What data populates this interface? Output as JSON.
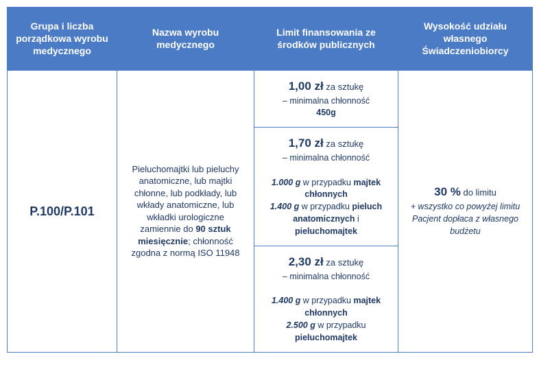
{
  "colors": {
    "header_bg": "#4a7bc4",
    "header_text": "#ffffff",
    "border": "#4a7bc4",
    "body_text": "#1f3864",
    "background": "#ffffff"
  },
  "headers": {
    "col1": "Grupa i liczba porządkowa wyrobu medycznego",
    "col2": "Nazwa wyrobu medycznego",
    "col3": "Limit finansowania ze środków publicznych",
    "col4": "Wysokość udziału własnego Świadczeniobiorcy"
  },
  "row": {
    "code": "P.100/P.101",
    "description_pre": "Pieluchomajtki lub pieluchy anatomiczne, lub majtki chłonne, lub podkłady, lub wkłady anatomiczne, lub wkładki urologiczne zamiennie do ",
    "description_bold": "90 sztuk miesięcznie",
    "description_post": "; chłonność zgodna z normą ISO 11948",
    "limits": [
      {
        "price": "1,00 zł",
        "per_unit": " za sztukę",
        "note": "– minimalna chłonność",
        "lines": [
          {
            "bold": "450g"
          }
        ]
      },
      {
        "price": "1,70 zł",
        "per_unit": " za sztukę",
        "note": "– minimalna chłonność",
        "lines": [
          {
            "ital_bold": "1.000 g",
            "rest": " w przypadku ",
            "bold2": "majtek chłonnych"
          },
          {
            "ital_bold": "1.400 g",
            "rest": " w przypadku ",
            "bold2": "pieluch anatomicznych",
            "tail": " i ",
            "bold3": "pieluchomajtek"
          }
        ]
      },
      {
        "price": "2,30 zł",
        "per_unit": " za sztukę",
        "note": "– minimalna chłonność",
        "lines": [
          {
            "ital_bold": "1.400 g",
            "rest": " w przypadku ",
            "bold2": "majtek chłonnych"
          },
          {
            "ital_bold": "2.500 g",
            "rest": " w przypadku ",
            "bold2": "pieluchomajtek"
          }
        ]
      }
    ],
    "share": {
      "pct": "30 %",
      "pct_suffix": " do limitu",
      "note": "+ wszystko co powyżej limitu Pacjent dopłaca z własnego budżetu"
    }
  }
}
